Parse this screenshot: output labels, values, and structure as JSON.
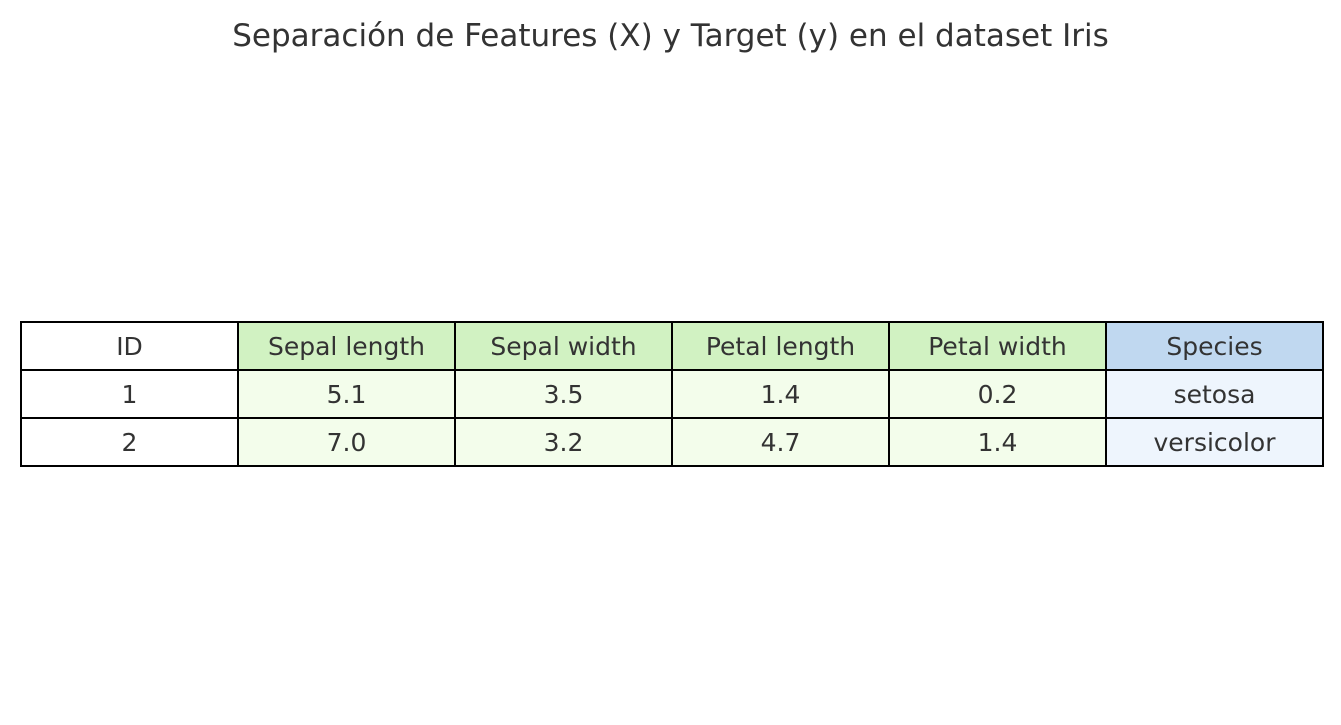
{
  "chart_data": {
    "type": "table",
    "title": "Separación de Features (X) y Target (y) en el dataset Iris",
    "columns": [
      {
        "label": "ID",
        "header_color": "#ffffff",
        "cell_color": "#ffffff"
      },
      {
        "label": "Sepal length",
        "header_color": "#d1f2c2",
        "cell_color": "#f3fdeb"
      },
      {
        "label": "Sepal width",
        "header_color": "#d1f2c2",
        "cell_color": "#f3fdeb"
      },
      {
        "label": "Petal length",
        "header_color": "#d1f2c2",
        "cell_color": "#f3fdeb"
      },
      {
        "label": "Petal width",
        "header_color": "#d1f2c2",
        "cell_color": "#f3fdeb"
      },
      {
        "label": "Species",
        "header_color": "#c0d8f0",
        "cell_color": "#eef5fd"
      }
    ],
    "rows": [
      [
        "1",
        "5.1",
        "3.5",
        "1.4",
        "0.2",
        "setosa"
      ],
      [
        "2",
        "7.0",
        "3.2",
        "4.7",
        "1.4",
        "versicolor"
      ]
    ]
  }
}
